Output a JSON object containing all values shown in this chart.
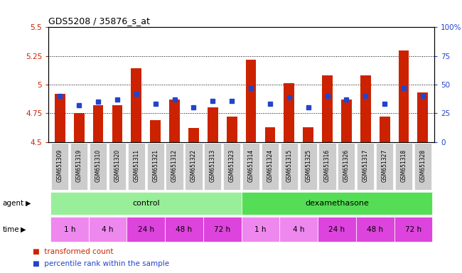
{
  "title": "GDS5208 / 35876_s_at",
  "samples": [
    "GSM651309",
    "GSM651319",
    "GSM651310",
    "GSM651320",
    "GSM651311",
    "GSM651321",
    "GSM651312",
    "GSM651322",
    "GSM651313",
    "GSM651323",
    "GSM651314",
    "GSM651324",
    "GSM651315",
    "GSM651325",
    "GSM651316",
    "GSM651326",
    "GSM651317",
    "GSM651327",
    "GSM651318",
    "GSM651328"
  ],
  "transformed_count": [
    4.92,
    4.75,
    4.82,
    4.82,
    5.14,
    4.69,
    4.87,
    4.62,
    4.8,
    4.72,
    5.22,
    4.63,
    5.01,
    4.63,
    5.08,
    4.87,
    5.08,
    4.72,
    5.3,
    4.93
  ],
  "percentile_rank": [
    40,
    32,
    35,
    37,
    42,
    33,
    37,
    30,
    36,
    36,
    47,
    33,
    39,
    30,
    40,
    37,
    40,
    33,
    47,
    40
  ],
  "ylim_left": [
    4.5,
    5.5
  ],
  "ylim_right": [
    0,
    100
  ],
  "yticks_left": [
    4.5,
    4.75,
    5.0,
    5.25,
    5.5
  ],
  "yticks_right": [
    0,
    25,
    50,
    75,
    100
  ],
  "ytick_labels_right": [
    "0",
    "25",
    "50",
    "75",
    "100%"
  ],
  "bar_color": "#cc2200",
  "dot_color": "#2244cc",
  "bar_width": 0.55,
  "ctrl_color": "#99ee99",
  "dex_color": "#55dd55",
  "time_light": "#ee88ee",
  "time_dark": "#dd44dd",
  "sample_box_color": "#cccccc",
  "background_color": "#ffffff"
}
